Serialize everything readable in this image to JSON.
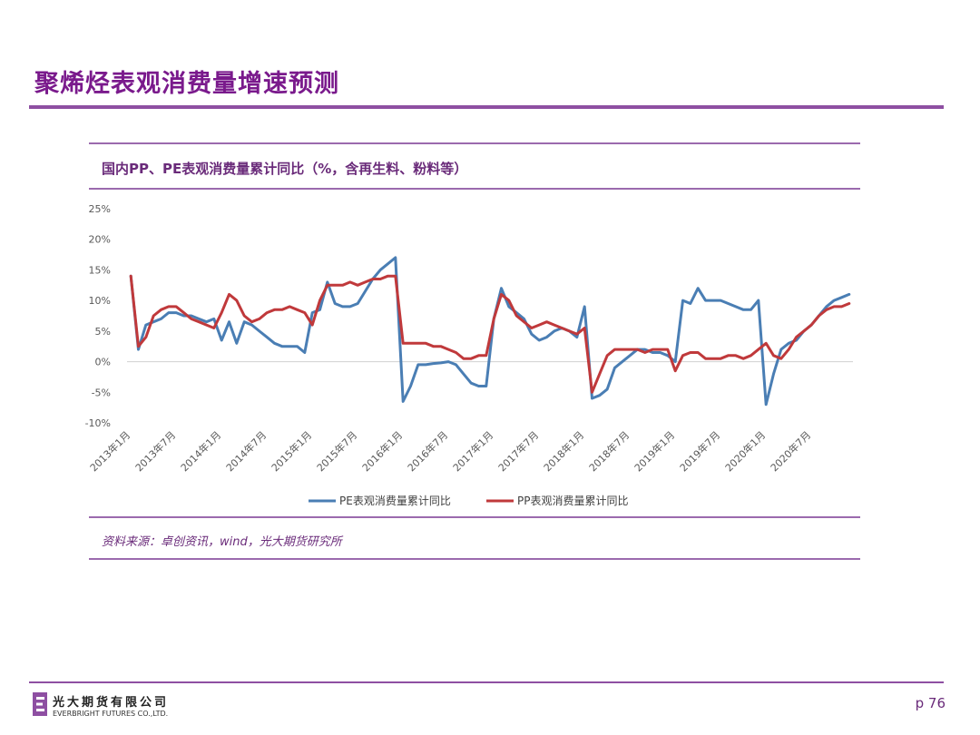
{
  "slide": {
    "title": "聚烯烃表观消费量增速预测",
    "page": "p 76"
  },
  "chart_heading": "国内PP、PE表观消费量累计同比（%，含再生料、粉料等）",
  "source": "资料来源：卓创资讯，wind，光大期货研究所",
  "company": {
    "cn": "光大期货有限公司",
    "en": "EVERBRIGHT FUTURES CO.,LTD."
  },
  "colors": {
    "PE": "#4a7eb4",
    "PP": "#c0393b",
    "accent": "#7a1a8c"
  },
  "chart_data": {
    "type": "line",
    "title": "国内PP、PE表观消费量累计同比（%，含再生料、粉料等）",
    "x": [
      "2013-01",
      "2013-02",
      "2013-03",
      "2013-04",
      "2013-05",
      "2013-06",
      "2013-07",
      "2013-08",
      "2013-09",
      "2013-10",
      "2013-11",
      "2013-12",
      "2014-01",
      "2014-02",
      "2014-03",
      "2014-04",
      "2014-05",
      "2014-06",
      "2014-07",
      "2014-08",
      "2014-09",
      "2014-10",
      "2014-11",
      "2014-12",
      "2015-01",
      "2015-02",
      "2015-03",
      "2015-04",
      "2015-05",
      "2015-06",
      "2015-07",
      "2015-08",
      "2015-09",
      "2015-10",
      "2015-11",
      "2015-12",
      "2016-01",
      "2016-02",
      "2016-03",
      "2016-04",
      "2016-05",
      "2016-06",
      "2016-07",
      "2016-08",
      "2016-09",
      "2016-10",
      "2016-11",
      "2016-12",
      "2017-01",
      "2017-02",
      "2017-03",
      "2017-04",
      "2017-05",
      "2017-06",
      "2017-07",
      "2017-08",
      "2017-09",
      "2017-10",
      "2017-11",
      "2017-12",
      "2018-01",
      "2018-02",
      "2018-03",
      "2018-04",
      "2018-05",
      "2018-06",
      "2018-07",
      "2018-08",
      "2018-09",
      "2018-10",
      "2018-11",
      "2018-12",
      "2019-01",
      "2019-02",
      "2019-03",
      "2019-04",
      "2019-05",
      "2019-06",
      "2019-07",
      "2019-08",
      "2019-09",
      "2019-10",
      "2019-11",
      "2019-12",
      "2020-01",
      "2020-02",
      "2020-03",
      "2020-04",
      "2020-05",
      "2020-06",
      "2020-07",
      "2020-08",
      "2020-09",
      "2020-10",
      "2020-11",
      "2020-12"
    ],
    "x_tick_labels": [
      "2013年1月",
      "2013年7月",
      "2014年1月",
      "2014年7月",
      "2015年1月",
      "2015年7月",
      "2016年1月",
      "2016年7月",
      "2017年1月",
      "2017年7月",
      "2018年1月",
      "2018年7月",
      "2019年1月",
      "2019年7月",
      "2020年1月",
      "2020年7月"
    ],
    "ylim": [
      -10,
      25
    ],
    "y_ticks": [
      "-10%",
      "-5%",
      "0%",
      "5%",
      "10%",
      "15%",
      "20%",
      "25%"
    ],
    "y_tick_values": [
      -10,
      -5,
      0,
      5,
      10,
      15,
      20,
      25
    ],
    "grid": false,
    "legend_position": "bottom",
    "series": [
      {
        "name": "PE表观消费量累计同比",
        "color": "#4a7eb4",
        "values": [
          14,
          2,
          6,
          6.5,
          7,
          8,
          8,
          7.5,
          7.5,
          7,
          6.5,
          7,
          3.5,
          6.5,
          3,
          6.5,
          6,
          5,
          4,
          3,
          2.5,
          2.5,
          2.5,
          1.5,
          8,
          8.5,
          13,
          9.5,
          9,
          9,
          9.5,
          11.5,
          13.5,
          15,
          16,
          17,
          -6.5,
          -4,
          -0.5,
          -0.5,
          -0.3,
          -0.2,
          0,
          -0.5,
          -2,
          -3.5,
          -4,
          -4,
          7,
          12,
          9,
          8,
          7,
          4.5,
          3.5,
          4,
          5,
          5.5,
          5,
          4,
          9,
          -6,
          -5.5,
          -4.5,
          -1,
          0,
          1,
          2,
          2,
          1.5,
          1.5,
          1,
          0,
          10,
          9.5,
          12,
          10,
          10,
          10,
          9.5,
          9,
          8.5,
          8.5,
          10,
          -7,
          -2,
          2,
          3,
          3.5,
          5,
          6,
          7.5,
          9,
          10,
          10.5,
          11
        ]
      },
      {
        "name": "PP表观消费量累计同比",
        "color": "#c0393b",
        "values": [
          14,
          2.5,
          4,
          7.5,
          8.5,
          9,
          9,
          8,
          7,
          6.5,
          6,
          5.5,
          8,
          11,
          10,
          7.5,
          6.5,
          7,
          8,
          8.5,
          8.5,
          9,
          8.5,
          8,
          6,
          10,
          12.5,
          12.5,
          12.5,
          13,
          12.5,
          13,
          13.5,
          13.5,
          14,
          14,
          3,
          3,
          3,
          3,
          2.5,
          2.5,
          2,
          1.5,
          0.5,
          0.5,
          1,
          1,
          7,
          11,
          10,
          7.5,
          6.5,
          5.5,
          6,
          6.5,
          6,
          5.5,
          5,
          4.5,
          5.5,
          -5,
          -2,
          1,
          2,
          2,
          2,
          2,
          1.5,
          2,
          2,
          2,
          -1.5,
          1,
          1.5,
          1.5,
          0.5,
          0.5,
          0.5,
          1,
          1,
          0.5,
          1,
          2,
          3,
          1,
          0.5,
          2,
          4,
          5,
          6,
          7.5,
          8.5,
          9,
          9,
          9.5
        ]
      }
    ]
  }
}
